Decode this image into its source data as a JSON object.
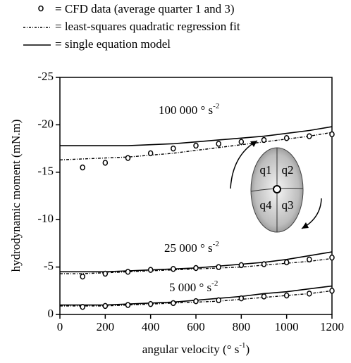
{
  "chart_data": {
    "type": "line",
    "legend": [
      {
        "label": "= CFD data (average quarter 1 and 3)",
        "style": "circle"
      },
      {
        "label": "= least-squares quadratic regression fit",
        "style": "dotted"
      },
      {
        "label": "= single equation model",
        "style": "solid"
      }
    ],
    "y_label": "hydrodynamic moment (mN.m)",
    "x_label": [
      "angular velocity (° s",
      "-1",
      ")"
    ],
    "xlim": [
      0,
      1200
    ],
    "xticks": [
      0,
      200,
      400,
      600,
      800,
      1000,
      1200
    ],
    "ylim": [
      0,
      -25
    ],
    "yticks": [
      0,
      -5,
      -10,
      -15,
      -20,
      -25
    ],
    "x": [
      0,
      100,
      200,
      300,
      400,
      500,
      600,
      700,
      800,
      900,
      1000,
      1100,
      1200
    ],
    "cfd_x": [
      100,
      200,
      300,
      400,
      500,
      600,
      700,
      800,
      900,
      1000,
      1100,
      1200
    ],
    "color": "#000000",
    "groups": [
      {
        "label": "100 000 ° s",
        "label_sup": "-2",
        "cfd": [
          -15.5,
          -16.0,
          -16.5,
          -17.0,
          -17.5,
          -17.8,
          -18.0,
          -18.2,
          -18.4,
          -18.6,
          -18.8,
          -19.0
        ],
        "fit": [
          -16.3,
          -16.4,
          -16.5,
          -16.6,
          -16.8,
          -17.0,
          -17.3,
          -17.6,
          -17.9,
          -18.2,
          -18.5,
          -18.8,
          -19.2
        ],
        "model": [
          -17.8,
          -17.8,
          -17.8,
          -17.8,
          -17.9,
          -18.0,
          -18.2,
          -18.4,
          -18.6,
          -18.8,
          -19.1,
          -19.4,
          -19.8
        ]
      },
      {
        "label": "25 000 ° s",
        "label_sup": "-2",
        "cfd": [
          -4.0,
          -4.3,
          -4.5,
          -4.7,
          -4.8,
          -4.9,
          -5.0,
          -5.2,
          -5.3,
          -5.5,
          -5.8,
          -6.0
        ],
        "fit": [
          -4.3,
          -4.3,
          -4.4,
          -4.5,
          -4.6,
          -4.7,
          -4.8,
          -4.9,
          -5.0,
          -5.2,
          -5.4,
          -5.6,
          -5.9
        ],
        "model": [
          -4.5,
          -4.5,
          -4.5,
          -4.6,
          -4.7,
          -4.8,
          -4.9,
          -5.1,
          -5.3,
          -5.5,
          -5.8,
          -6.2,
          -6.6
        ]
      },
      {
        "label": "5 000 ° s",
        "label_sup": "-2",
        "cfd": [
          -0.8,
          -0.9,
          -1.0,
          -1.1,
          -1.2,
          -1.4,
          -1.5,
          -1.7,
          -1.9,
          -2.0,
          -2.2,
          -2.5
        ],
        "fit": [
          -0.9,
          -0.9,
          -0.9,
          -1.0,
          -1.1,
          -1.2,
          -1.3,
          -1.4,
          -1.6,
          -1.8,
          -2.0,
          -2.2,
          -2.5
        ],
        "model": [
          -1.0,
          -1.0,
          -1.0,
          -1.1,
          -1.2,
          -1.3,
          -1.5,
          -1.7,
          -1.9,
          -2.2,
          -2.4,
          -2.7,
          -3.0
        ]
      }
    ],
    "inset_labels": [
      "q1",
      "q2",
      "q4",
      "q3"
    ]
  }
}
